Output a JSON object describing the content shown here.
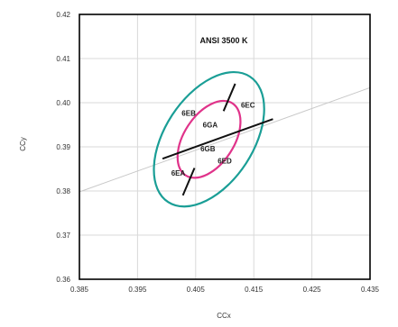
{
  "chart_data": {
    "type": "scatter",
    "title": "ANSI 3500 K",
    "xlabel": "CCx",
    "ylabel": "CCy",
    "xlim": [
      0.385,
      0.435
    ],
    "ylim": [
      0.36,
      0.42
    ],
    "x_ticks": [
      "0.385",
      "0.395",
      "0.405",
      "0.415",
      "0.425",
      "0.435"
    ],
    "y_ticks": [
      "0.36",
      "0.37",
      "0.38",
      "0.39",
      "0.40",
      "0.41",
      "0.42"
    ],
    "grid": true,
    "colors": {
      "outer_ellipse": "#1a9e96",
      "inner_ellipse": "#e0338a",
      "bin_lines": "#111111",
      "planckian_locus": "#c8c8c8",
      "grid": "#d9d9d9",
      "frame": "#000000"
    },
    "planckian_locus": {
      "x": [
        0.385,
        0.435
      ],
      "y": [
        0.3798,
        0.4034
      ]
    },
    "outer_ellipse": {
      "center": [
        0.4073,
        0.3917
      ],
      "semi_major": 0.0129,
      "semi_minor": 0.0076,
      "angle_deg": 57
    },
    "inner_ellipse": {
      "center": [
        0.4073,
        0.3917
      ],
      "semi_major": 0.0074,
      "semi_minor": 0.0043,
      "angle_deg": 57
    },
    "bin_lines": [
      {
        "x": [
          0.3993,
          0.4183
        ],
        "y": [
          0.3873,
          0.3963
        ]
      },
      {
        "x": [
          0.4118,
          0.4098
        ],
        "y": [
          0.4043,
          0.3981
        ]
      },
      {
        "x": [
          0.4048,
          0.4028
        ],
        "y": [
          0.3852,
          0.379
        ]
      }
    ],
    "bins": [
      {
        "label": "6EB",
        "x": 0.4038,
        "y": 0.3975
      },
      {
        "label": "6EC",
        "x": 0.414,
        "y": 0.3993
      },
      {
        "label": "6GA",
        "x": 0.4075,
        "y": 0.3948
      },
      {
        "label": "6GB",
        "x": 0.4071,
        "y": 0.3894
      },
      {
        "label": "6ED",
        "x": 0.41,
        "y": 0.3867
      },
      {
        "label": "6EA",
        "x": 0.402,
        "y": 0.3839
      }
    ]
  }
}
